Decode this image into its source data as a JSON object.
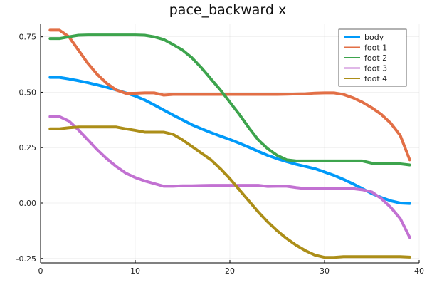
{
  "chart_data": {
    "type": "line",
    "title": "pace_backward x",
    "xlabel": "",
    "ylabel": "",
    "xlim": [
      0,
      40
    ],
    "ylim": [
      -0.27,
      0.81
    ],
    "x_ticks": [
      0,
      10,
      20,
      30,
      40
    ],
    "y_ticks": [
      -0.25,
      0.0,
      0.25,
      0.5,
      0.75
    ],
    "x_tick_labels": [
      "0",
      "10",
      "20",
      "30",
      "40"
    ],
    "y_tick_labels": [
      "-0.25",
      "0.00",
      "0.25",
      "0.50",
      "0.75"
    ],
    "grid": true,
    "legend_position": "top-right",
    "x": [
      1,
      2,
      3,
      4,
      5,
      6,
      7,
      8,
      9,
      10,
      11,
      12,
      13,
      14,
      15,
      16,
      17,
      18,
      19,
      20,
      21,
      22,
      23,
      24,
      25,
      26,
      27,
      28,
      29,
      30,
      31,
      32,
      33,
      34,
      35,
      36,
      37,
      38,
      39
    ],
    "series": [
      {
        "name": "body",
        "color": "#009AF9",
        "values": [
          0.567,
          0.567,
          0.56,
          0.552,
          0.543,
          0.533,
          0.522,
          0.51,
          0.497,
          0.483,
          0.465,
          0.443,
          0.42,
          0.397,
          0.375,
          0.353,
          0.335,
          0.318,
          0.302,
          0.287,
          0.27,
          0.252,
          0.233,
          0.215,
          0.2,
          0.187,
          0.175,
          0.165,
          0.155,
          0.14,
          0.125,
          0.107,
          0.087,
          0.065,
          0.043,
          0.025,
          0.01,
          0.0,
          -0.002
        ]
      },
      {
        "name": "foot 1",
        "color": "#E26F46",
        "values": [
          0.78,
          0.78,
          0.75,
          0.69,
          0.63,
          0.58,
          0.54,
          0.51,
          0.495,
          0.495,
          0.497,
          0.497,
          0.487,
          0.49,
          0.49,
          0.49,
          0.49,
          0.49,
          0.49,
          0.49,
          0.49,
          0.49,
          0.49,
          0.49,
          0.49,
          0.491,
          0.492,
          0.493,
          0.496,
          0.497,
          0.497,
          0.49,
          0.475,
          0.455,
          0.43,
          0.4,
          0.36,
          0.305,
          0.195
        ]
      },
      {
        "name": "foot 2",
        "color": "#3DA44D",
        "values": [
          0.742,
          0.742,
          0.75,
          0.757,
          0.758,
          0.758,
          0.758,
          0.758,
          0.758,
          0.758,
          0.757,
          0.75,
          0.738,
          0.715,
          0.69,
          0.655,
          0.61,
          0.56,
          0.51,
          0.455,
          0.4,
          0.34,
          0.285,
          0.245,
          0.215,
          0.195,
          0.19,
          0.19,
          0.19,
          0.19,
          0.19,
          0.19,
          0.19,
          0.19,
          0.18,
          0.177,
          0.177,
          0.177,
          0.172
        ]
      },
      {
        "name": "foot 3",
        "color": "#C271D2",
        "values": [
          0.39,
          0.39,
          0.37,
          0.33,
          0.285,
          0.24,
          0.2,
          0.165,
          0.135,
          0.115,
          0.1,
          0.088,
          0.076,
          0.076,
          0.078,
          0.078,
          0.079,
          0.08,
          0.08,
          0.08,
          0.08,
          0.08,
          0.08,
          0.075,
          0.076,
          0.076,
          0.07,
          0.065,
          0.065,
          0.065,
          0.065,
          0.065,
          0.065,
          0.06,
          0.05,
          0.02,
          -0.02,
          -0.07,
          -0.155
        ]
      },
      {
        "name": "foot 4",
        "color": "#AC8E18",
        "values": [
          0.335,
          0.335,
          0.34,
          0.343,
          0.343,
          0.343,
          0.343,
          0.343,
          0.335,
          0.328,
          0.32,
          0.32,
          0.32,
          0.31,
          0.285,
          0.255,
          0.225,
          0.195,
          0.155,
          0.11,
          0.06,
          0.01,
          -0.04,
          -0.085,
          -0.125,
          -0.16,
          -0.19,
          -0.215,
          -0.235,
          -0.245,
          -0.245,
          -0.242,
          -0.242,
          -0.242,
          -0.242,
          -0.242,
          -0.242,
          -0.242,
          -0.244
        ]
      }
    ]
  }
}
